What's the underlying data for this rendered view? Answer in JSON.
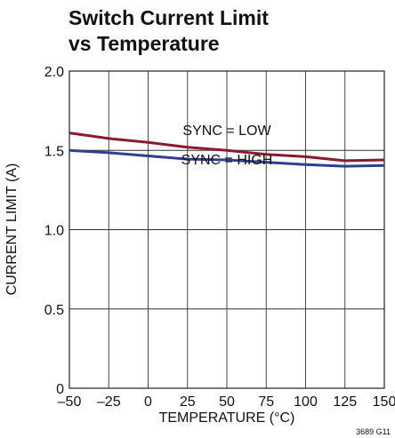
{
  "chart_data": {
    "type": "line",
    "title_lines": [
      "Switch Current Limit",
      "vs Temperature"
    ],
    "xlabel": "TEMPERATURE (°C)",
    "ylabel": "CURRENT LIMIT (A)",
    "xlim": [
      -50,
      150
    ],
    "ylim": [
      0,
      2.0
    ],
    "x_ticks": [
      -50,
      -25,
      0,
      25,
      50,
      75,
      100,
      125,
      150
    ],
    "x_tick_labels": [
      "–50",
      "–25",
      "0",
      "25",
      "50",
      "75",
      "100",
      "125",
      "150"
    ],
    "y_ticks": [
      0,
      0.5,
      1.0,
      1.5,
      2.0
    ],
    "y_tick_labels": [
      "0",
      "0.5",
      "1.0",
      "1.5",
      "2.0"
    ],
    "grid": true,
    "series": [
      {
        "name": "SYNC = LOW",
        "color": "#8b1a2e",
        "x": [
          -50,
          -25,
          0,
          25,
          50,
          75,
          100,
          125,
          150
        ],
        "y": [
          1.61,
          1.575,
          1.55,
          1.52,
          1.5,
          1.475,
          1.46,
          1.435,
          1.44
        ]
      },
      {
        "name": "SYNC = HIGH",
        "color": "#2e3f8f",
        "x": [
          -50,
          -25,
          0,
          25,
          50,
          75,
          100,
          125,
          150
        ],
        "y": [
          1.5,
          1.485,
          1.465,
          1.445,
          1.44,
          1.425,
          1.41,
          1.4,
          1.405
        ]
      }
    ],
    "figure_id": "3689 G11"
  }
}
